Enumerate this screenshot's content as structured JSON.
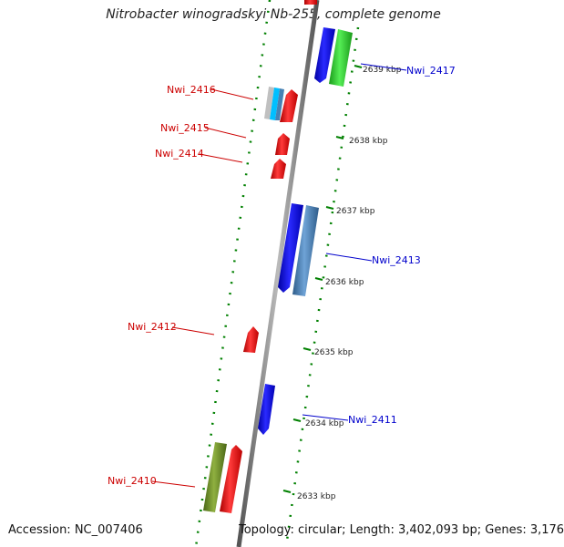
{
  "title": "Nitrobacter winogradskyi Nb-255, complete genome",
  "accession": "Accession: NC_007406",
  "summary": "Topology: circular; Length: 3,402,093 bp; Genes: 3,176",
  "ticks": [
    {
      "label": "2639 kbp"
    },
    {
      "label": "2638 kbp"
    },
    {
      "label": "2637 kbp"
    },
    {
      "label": "2636 kbp"
    },
    {
      "label": "2635 kbp"
    },
    {
      "label": "2634 kbp"
    },
    {
      "label": "2633 kbp"
    }
  ],
  "gene_labels": [
    {
      "text": "Nwi_2417",
      "color": "#0000cc"
    },
    {
      "text": "Nwi_2416",
      "color": "#cc0000"
    },
    {
      "text": "Nwi_2415",
      "color": "#cc0000"
    },
    {
      "text": "Nwi_2414",
      "color": "#cc0000"
    },
    {
      "text": "Nwi_2413",
      "color": "#0000cc"
    },
    {
      "text": "Nwi_2412",
      "color": "#cc0000"
    },
    {
      "text": "Nwi_2411",
      "color": "#0000cc"
    },
    {
      "text": "Nwi_2410",
      "color": "#cc0000"
    }
  ],
  "colors": {
    "backbone": "#808080",
    "forward_gene": "#ff0000",
    "reverse_gene": "#0000ff",
    "rna_gene": "#33cc33",
    "operon_blue": "#4682b4",
    "cyan_gene": "#00bfff",
    "olive_gene": "#6b8e23",
    "tick_mark": "#008000"
  }
}
